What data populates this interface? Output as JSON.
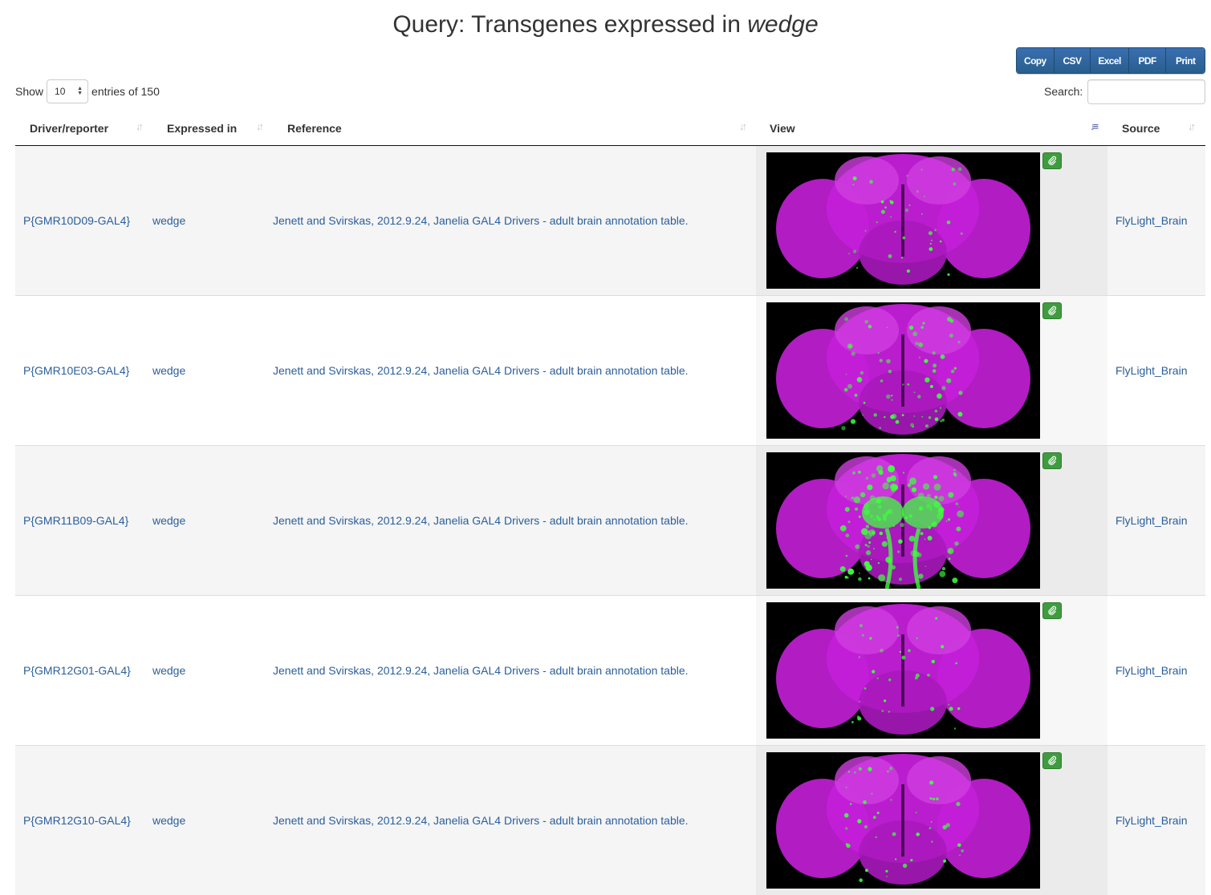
{
  "title": {
    "prefix": "Query: Transgenes expressed in ",
    "term": "wedge"
  },
  "export_buttons": [
    "Copy",
    "CSV",
    "Excel",
    "PDF",
    "Print"
  ],
  "length": {
    "show_label": "Show",
    "value": "10",
    "suffix": "entries of 150"
  },
  "search": {
    "label": "Search:",
    "value": "",
    "placeholder": ""
  },
  "columns": [
    "Driver/reporter",
    "Expressed in",
    "Reference",
    "View",
    "Source"
  ],
  "sorted_column": "View",
  "rows": [
    {
      "driver": "P{GMR10D09-GAL4}",
      "expressed": "wedge",
      "reference": "Jenett and Svirskas, 2012.9.24, Janelia GAL4 Drivers - adult brain annotation table.",
      "source": "FlyLight_Brain",
      "green_level": 0.15
    },
    {
      "driver": "P{GMR10E03-GAL4}",
      "expressed": "wedge",
      "reference": "Jenett and Svirskas, 2012.9.24, Janelia GAL4 Drivers - adult brain annotation table.",
      "source": "FlyLight_Brain",
      "green_level": 0.45
    },
    {
      "driver": "P{GMR11B09-GAL4}",
      "expressed": "wedge",
      "reference": "Jenett and Svirskas, 2012.9.24, Janelia GAL4 Drivers - adult brain annotation table.",
      "source": "FlyLight_Brain",
      "green_level": 0.9
    },
    {
      "driver": "P{GMR12G01-GAL4}",
      "expressed": "wedge",
      "reference": "Jenett and Svirskas, 2012.9.24, Janelia GAL4 Drivers - adult brain annotation table.",
      "source": "FlyLight_Brain",
      "green_level": 0.12
    },
    {
      "driver": "P{GMR12G10-GAL4}",
      "expressed": "wedge",
      "reference": "Jenett and Svirskas, 2012.9.24, Janelia GAL4 Drivers - adult brain annotation table.",
      "source": "FlyLight_Brain",
      "green_level": 0.2
    }
  ],
  "colors": {
    "link": "#2a5e9c",
    "button_primary": "#285e8e",
    "attach_green": "#3f9b3f",
    "brain_magenta": "#c41fd8",
    "expression_green": "#3dff3d"
  },
  "icons": {
    "attach": "paperclip-icon",
    "sort": "sort-icon",
    "select_arrows": "select-arrows-icon"
  }
}
